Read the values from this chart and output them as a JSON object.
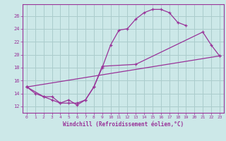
{
  "xlabel": "Windchill (Refroidissement éolien,°C)",
  "bg_color": "#cce8e8",
  "grid_color": "#aacccc",
  "line_color": "#993399",
  "x_ticks": [
    0,
    1,
    2,
    3,
    4,
    5,
    6,
    7,
    8,
    9,
    10,
    11,
    12,
    13,
    14,
    15,
    16,
    17,
    18,
    19,
    20,
    21,
    22,
    23
  ],
  "y_ticks": [
    12,
    14,
    16,
    18,
    20,
    22,
    24,
    26
  ],
  "xlim": [
    -0.5,
    23.5
  ],
  "ylim": [
    11.0,
    27.8
  ],
  "line1_x": [
    0,
    1,
    2,
    3,
    4,
    5,
    6,
    7,
    8,
    9,
    10,
    11,
    12,
    13,
    14,
    15,
    16,
    17,
    18,
    19,
    20,
    21,
    22,
    23
  ],
  "line1_y": [
    15.0,
    14.0,
    13.5,
    13.0,
    12.5,
    13.0,
    12.2,
    13.0,
    15.0,
    18.0,
    21.5,
    23.8,
    24.0,
    25.5,
    26.5,
    27.0,
    27.0,
    26.5,
    25.0,
    24.5,
    null,
    null,
    null,
    null
  ],
  "line2_x": [
    0,
    2,
    3,
    4,
    5,
    6,
    7,
    8,
    9,
    13,
    21,
    22,
    23
  ],
  "line2_y": [
    15.0,
    13.5,
    13.5,
    12.5,
    12.5,
    12.5,
    13.0,
    15.0,
    18.2,
    18.5,
    23.5,
    21.5,
    19.8
  ],
  "line3_x": [
    0,
    23
  ],
  "line3_y": [
    15.0,
    19.8
  ]
}
